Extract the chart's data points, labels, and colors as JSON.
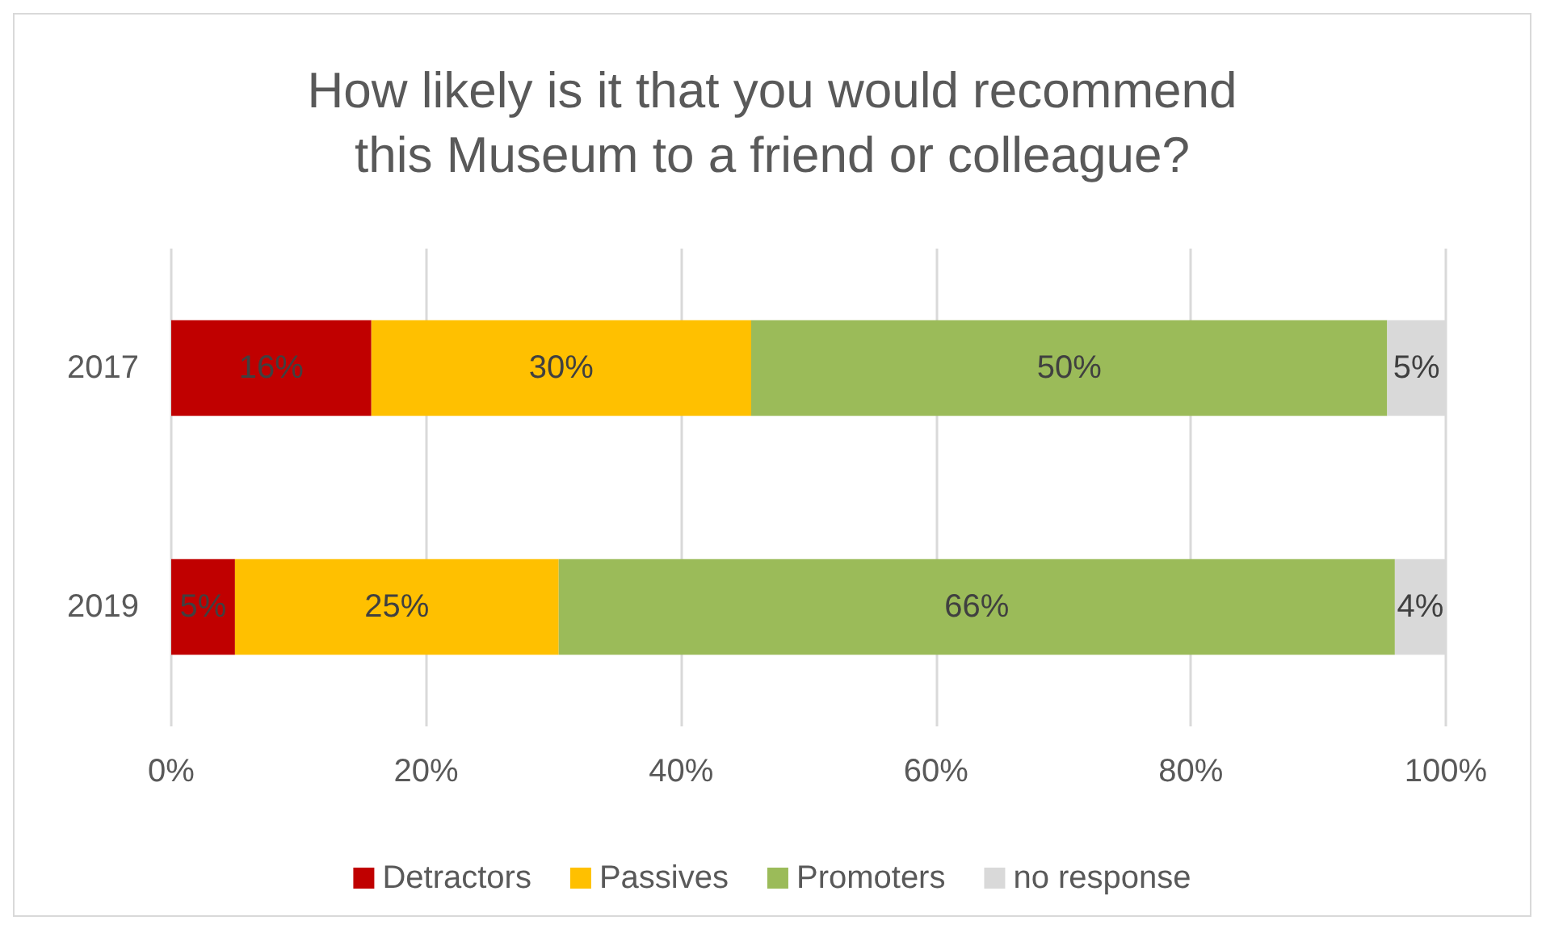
{
  "chart_data": {
    "type": "bar",
    "orientation": "horizontal",
    "stacked": true,
    "title": "How likely is it that you would recommend\nthis Museum to a friend or colleague?",
    "categories": [
      "2017",
      "2019"
    ],
    "series": [
      {
        "name": "Detractors",
        "color": "#c00000",
        "values": [
          15.7,
          5.0
        ],
        "value_labels": [
          "16%",
          "5%"
        ]
      },
      {
        "name": "Passives",
        "color": "#ffc000",
        "values": [
          29.8,
          25.4
        ],
        "value_labels": [
          "30%",
          "25%"
        ]
      },
      {
        "name": "Promoters",
        "color": "#9bbb59",
        "values": [
          49.9,
          65.6
        ],
        "value_labels": [
          "50%",
          "66%"
        ]
      },
      {
        "name": "no response",
        "color": "#d9d9d9",
        "values": [
          4.6,
          4.0
        ],
        "value_labels": [
          "5%",
          "4%"
        ]
      }
    ],
    "xlim": [
      0,
      100
    ],
    "xticks": [
      {
        "value": 0,
        "label": "0%"
      },
      {
        "value": 20,
        "label": "20%"
      },
      {
        "value": 40,
        "label": "40%"
      },
      {
        "value": 60,
        "label": "60%"
      },
      {
        "value": 80,
        "label": "80%"
      },
      {
        "value": 100,
        "label": "100%"
      }
    ],
    "grid": "x",
    "legend": "bottom"
  }
}
